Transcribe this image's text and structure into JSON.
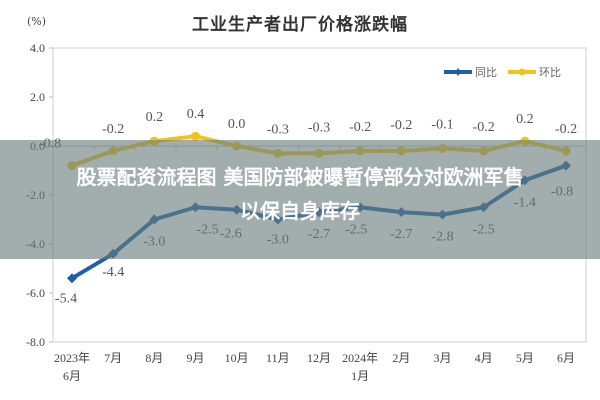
{
  "chart_data": {
    "type": "line",
    "title": "工业生产者出厂价格涨跌幅",
    "ylabel": "(%)",
    "xlabel": "",
    "ylim": [
      -8.0,
      4.0
    ],
    "yticks": [
      "4.0",
      "2.0",
      "0.0",
      "-2.0",
      "-4.0",
      "-6.0",
      "-8.0"
    ],
    "categories": [
      "2023年6月",
      "7月",
      "8月",
      "9月",
      "10月",
      "11月",
      "12月",
      "2024年1月",
      "2月",
      "3月",
      "4月",
      "5月",
      "6月"
    ],
    "category_lines": [
      [
        "2023年",
        "6月"
      ],
      [
        "7月"
      ],
      [
        "8月"
      ],
      [
        "9月"
      ],
      [
        "10月"
      ],
      [
        "11月"
      ],
      [
        "12月"
      ],
      [
        "2024年",
        "1月"
      ],
      [
        "2月"
      ],
      [
        "3月"
      ],
      [
        "4月"
      ],
      [
        "5月"
      ],
      [
        "6月"
      ]
    ],
    "series": [
      {
        "name": "同比",
        "color": "#1f5fa8",
        "values": [
          -5.4,
          -4.4,
          -3.0,
          -2.5,
          -2.6,
          -3.0,
          -2.7,
          -2.5,
          -2.7,
          -2.8,
          -2.5,
          -1.4,
          -0.8
        ],
        "labels": [
          "-5.4",
          "-4.4",
          "-3.0",
          "-2.5",
          "-2.6",
          "-3.0",
          "-2.7",
          "-2.5",
          "-2.7",
          "-2.8",
          "-2.5",
          "-1.4",
          "-0.8"
        ]
      },
      {
        "name": "环比",
        "color": "#f0c419",
        "values": [
          -0.8,
          -0.2,
          0.2,
          0.4,
          0.0,
          -0.3,
          -0.3,
          -0.2,
          -0.2,
          -0.1,
          -0.2,
          0.2,
          -0.2
        ],
        "labels": [
          "-0.8",
          "-0.2",
          "0.2",
          "0.4",
          "0.0",
          "-0.3",
          "-0.3",
          "-0.2",
          "-0.2",
          "-0.1",
          "-0.2",
          "0.2",
          "-0.2"
        ]
      }
    ],
    "legend_position": "top-right",
    "grid": false
  },
  "overlay": {
    "line1": "股票配资流程图 美国防部被曝暂停部分对欧洲军售",
    "line2": "以保自身库存"
  }
}
